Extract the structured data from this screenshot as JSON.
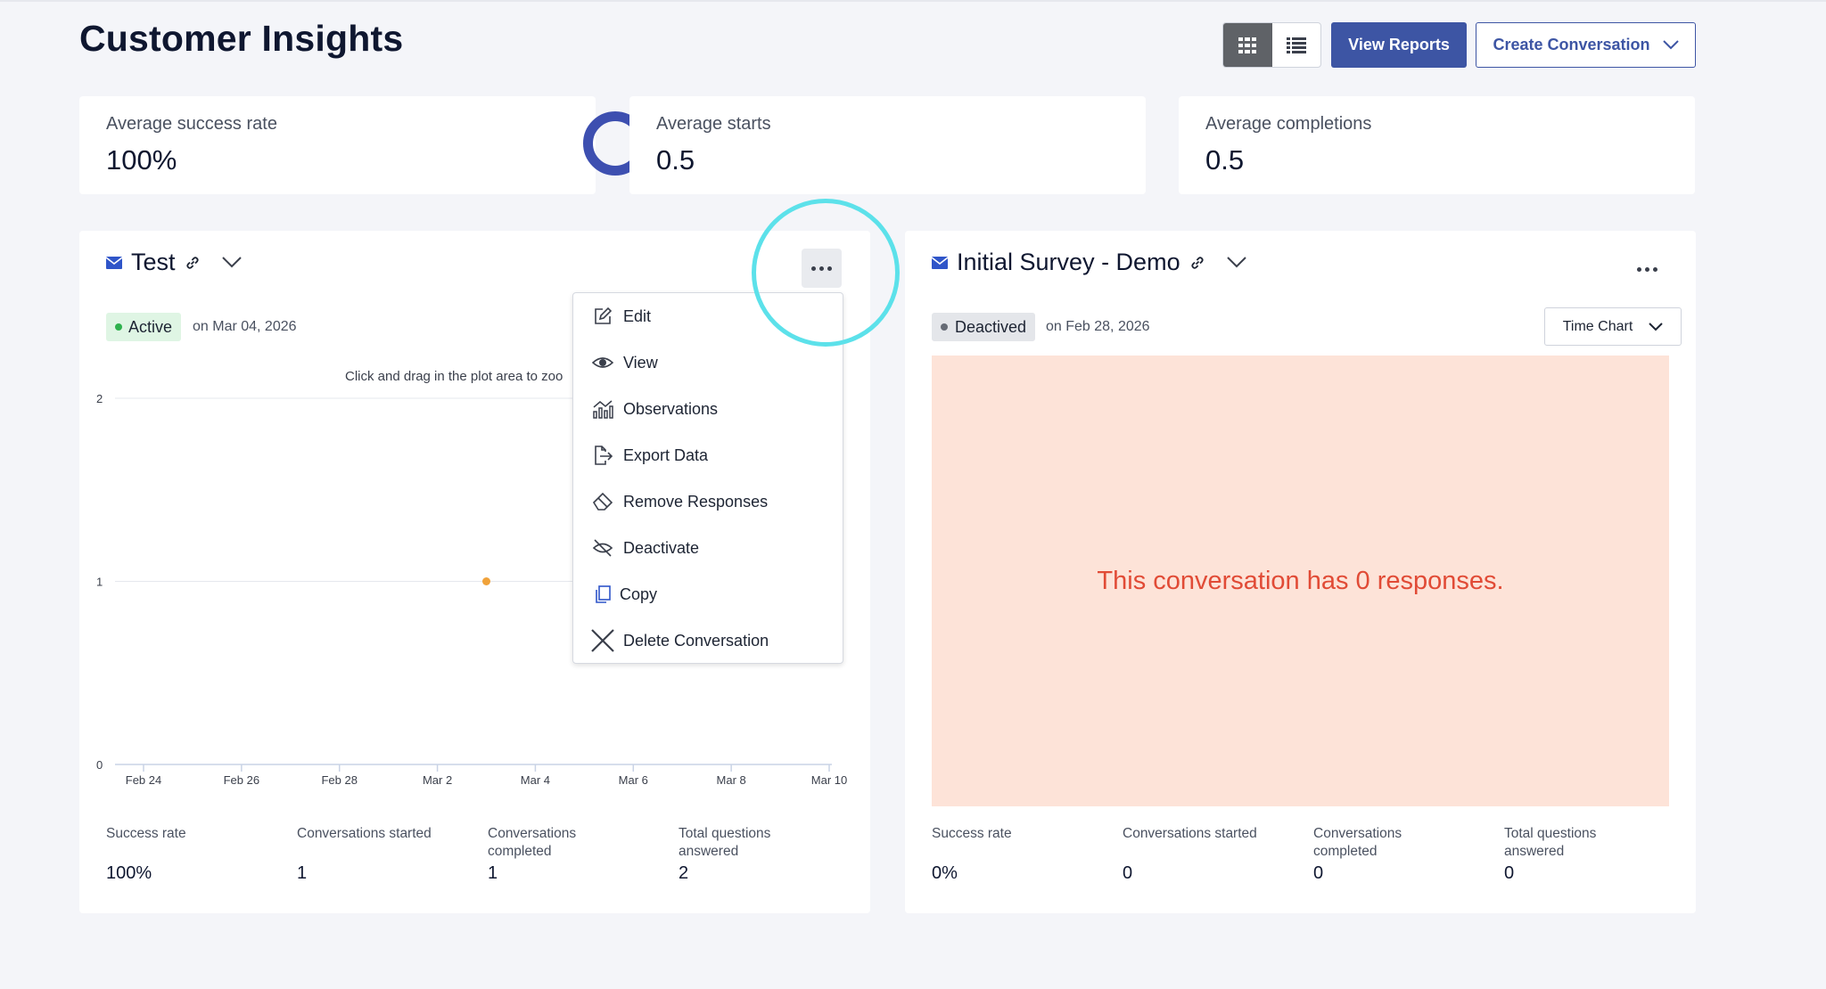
{
  "page": {
    "title": "Customer Insights"
  },
  "toolbar": {
    "view_reports": "View Reports",
    "create_conversation": "Create Conversation",
    "grid_icon": "grid-icon",
    "list_icon": "list-icon"
  },
  "stats": [
    {
      "label": "Average success rate",
      "value": "100%",
      "success_fraction": 1.0
    },
    {
      "label": "Average starts",
      "value": "0.5"
    },
    {
      "label": "Average completions",
      "value": "0.5"
    }
  ],
  "panels": [
    {
      "title": "Test",
      "status": "Active",
      "date": "on Mar 04, 2026",
      "chart_hint": "Click and drag in the plot area to zoo",
      "metrics": [
        {
          "label": "Success rate",
          "value": "100%"
        },
        {
          "label": "Conversations started",
          "value": "1"
        },
        {
          "label": "Conversations completed",
          "value": "1"
        },
        {
          "label": "Total questions answered",
          "value": "2"
        }
      ]
    },
    {
      "title": "Initial Survey - Demo",
      "status": "Deactived",
      "date": "on Feb 28, 2026",
      "chart_selector": "Time Chart",
      "empty_message": "This conversation has 0 responses.",
      "metrics": [
        {
          "label": "Success rate",
          "value": "0%"
        },
        {
          "label": "Conversations started",
          "value": "0"
        },
        {
          "label": "Conversations completed",
          "value": "0"
        },
        {
          "label": "Total questions answered",
          "value": "0"
        }
      ]
    }
  ],
  "menu": {
    "items": [
      {
        "label": "Edit",
        "icon": "edit-icon"
      },
      {
        "label": "View",
        "icon": "eye-icon"
      },
      {
        "label": "Observations",
        "icon": "chart-icon"
      },
      {
        "label": "Export Data",
        "icon": "export-icon"
      },
      {
        "label": "Remove Responses",
        "icon": "eraser-icon"
      },
      {
        "label": "Deactivate",
        "icon": "deactivate-icon"
      },
      {
        "label": "Copy",
        "icon": "copy-icon"
      },
      {
        "label": "Delete Conversation",
        "icon": "close-icon"
      }
    ]
  },
  "colors": {
    "primary": "#3d55a4",
    "active_badge": "#dff5e4",
    "empty_bg": "#fde3d8",
    "empty_text": "#e14b36",
    "highlight": "#5ce1ea",
    "point": "#f0a23a"
  },
  "chart_data": {
    "type": "scatter",
    "title": "",
    "xlabel": "",
    "ylabel": "",
    "x_ticks": [
      "Feb 24",
      "Feb 26",
      "Feb 28",
      "Mar 2",
      "Mar 4",
      "Mar 6",
      "Mar 8",
      "Mar 10"
    ],
    "y_ticks": [
      "0",
      "1",
      "2"
    ],
    "xlim": [
      "2026-02-24",
      "2026-03-10"
    ],
    "ylim": [
      0,
      2
    ],
    "series": [
      {
        "points": [
          {
            "x": "2026-03-03",
            "y": 1
          }
        ]
      }
    ]
  }
}
